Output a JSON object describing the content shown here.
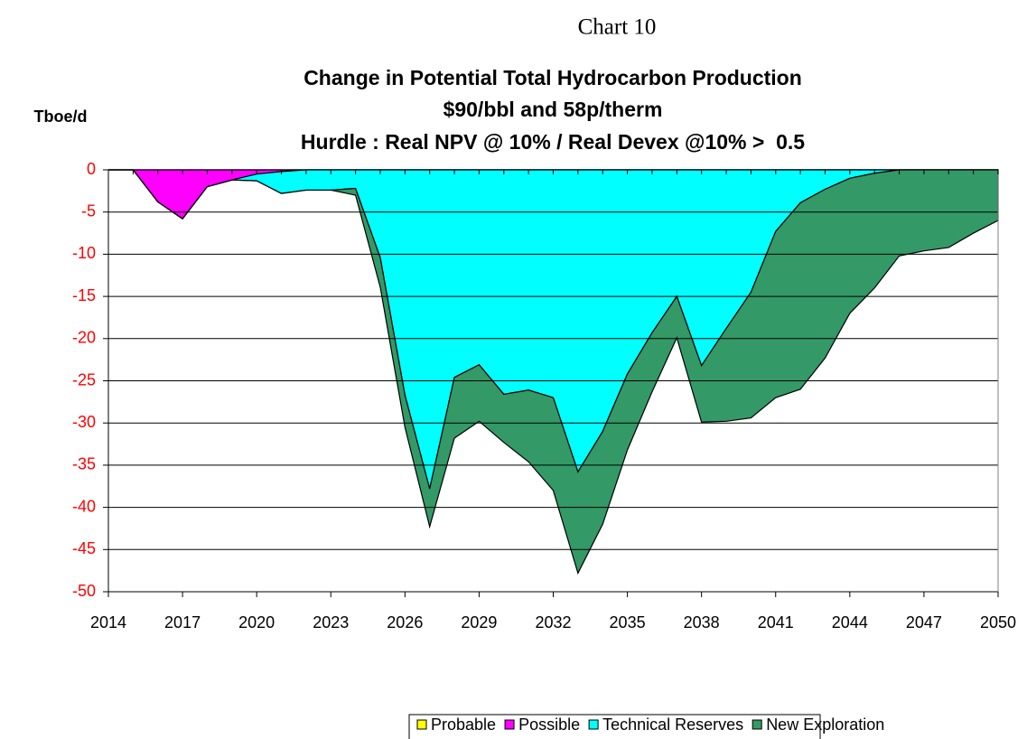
{
  "chart_data": {
    "type": "stacked_area",
    "caption": "Chart 10",
    "title": [
      "Change in Potential Total Hydrocarbon Production",
      "$90/bbl and 58p/therm",
      "Hurdle : Real NPV @ 10% / Real Devex @10% >  0.5"
    ],
    "y_label": "Tboe/d",
    "x": [
      2014,
      2015,
      2016,
      2017,
      2018,
      2019,
      2020,
      2021,
      2022,
      2023,
      2024,
      2025,
      2026,
      2027,
      2028,
      2029,
      2030,
      2031,
      2032,
      2033,
      2034,
      2035,
      2036,
      2037,
      2038,
      2039,
      2040,
      2041,
      2042,
      2043,
      2044,
      2045,
      2046,
      2047,
      2048,
      2049,
      2050
    ],
    "series": [
      {
        "name": "Probable",
        "color": "#ffff00",
        "values": [
          0,
          0,
          0,
          0,
          0,
          0,
          0,
          0,
          0,
          0,
          0,
          0,
          0,
          0,
          0,
          0,
          0,
          0,
          0,
          0,
          0,
          0,
          0,
          0,
          0,
          0,
          0,
          0,
          0,
          0,
          0,
          0,
          0,
          0,
          0,
          0,
          0
        ]
      },
      {
        "name": "Possible",
        "color": "#ff00ff",
        "values": [
          0,
          0,
          -3.8,
          -5.8,
          -2,
          -1.2,
          -0.5,
          -0.2,
          0,
          0,
          0,
          0,
          0,
          0,
          0,
          0,
          0,
          0,
          0,
          0,
          0,
          0,
          0,
          0,
          0,
          0,
          0,
          0,
          0,
          0,
          0,
          0,
          0,
          0,
          0,
          0,
          0
        ]
      },
      {
        "name": "Technical Reserves",
        "color": "#00ffff",
        "values": [
          0,
          0,
          0,
          0,
          0,
          0,
          -0.8,
          -2.6,
          -2.4,
          -2.4,
          -2.2,
          -10.4,
          -26.7,
          -37.8,
          -24.6,
          -23.1,
          -26.6,
          -26.1,
          -27,
          -35.8,
          -31,
          -24.2,
          -19.3,
          -15,
          -23.2,
          -18.8,
          -14.5,
          -7.3,
          -3.9,
          -2.3,
          -1,
          -0.4,
          0,
          0,
          0,
          0,
          0
        ]
      },
      {
        "name": "New Exploration",
        "color": "#339966",
        "values": [
          0,
          0,
          0,
          0,
          0,
          0,
          0,
          0,
          0,
          0,
          -0.8,
          -3.5,
          -3.8,
          -4.5,
          -7.2,
          -6.7,
          -5.7,
          -8.5,
          -11,
          -12,
          -11,
          -9,
          -7,
          -4.9,
          -6.7,
          -11,
          -14.9,
          -19.7,
          -22.1,
          -20,
          -16,
          -13.6,
          -10.2,
          -9.6,
          -9.2,
          -7.5,
          -6
        ]
      }
    ],
    "xlim": [
      2014,
      2050
    ],
    "xticks": [
      2014,
      2017,
      2020,
      2023,
      2026,
      2029,
      2032,
      2035,
      2038,
      2041,
      2044,
      2047,
      2050
    ],
    "ylim": [
      -50,
      0
    ],
    "yticks": [
      0,
      -5,
      -10,
      -15,
      -20,
      -25,
      -30,
      -35,
      -40,
      -45,
      -50
    ],
    "grid": true,
    "legend": "bottom"
  }
}
